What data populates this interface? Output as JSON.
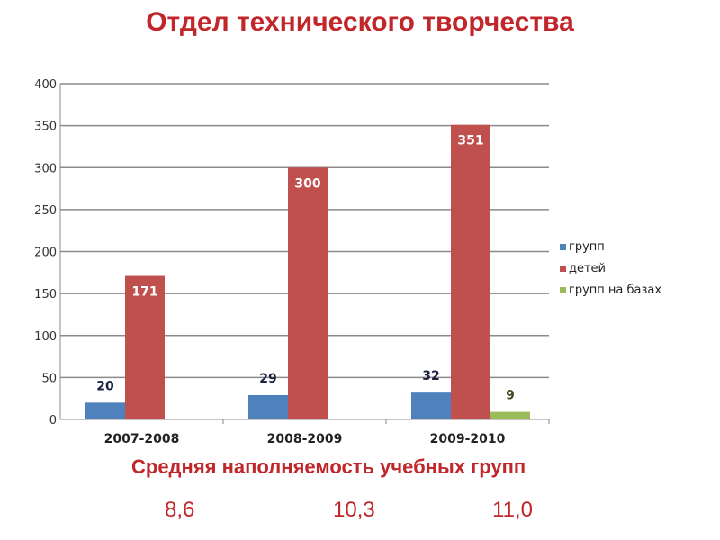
{
  "title": "Отдел технического творчества",
  "chart_data": {
    "type": "bar",
    "title": "",
    "categories": [
      "2007-2008",
      "2008-2009",
      "2009-2010"
    ],
    "series": [
      {
        "name": "групп",
        "values": [
          20,
          29,
          32
        ],
        "color": "#4f81bd"
      },
      {
        "name": "детей",
        "values": [
          171,
          300,
          351
        ],
        "color": "#c0504d"
      },
      {
        "name": "групп на базах",
        "values": [
          null,
          null,
          9
        ],
        "color": "#9bbb59"
      }
    ],
    "ylim": [
      0,
      400
    ],
    "yticks": [
      0,
      50,
      100,
      150,
      200,
      250,
      300,
      350,
      400
    ],
    "grid": true,
    "legend": "right"
  },
  "footer": {
    "label": "Средняя наполняемость учебных групп",
    "values": [
      "8,6",
      "10,3",
      "11,0"
    ]
  }
}
